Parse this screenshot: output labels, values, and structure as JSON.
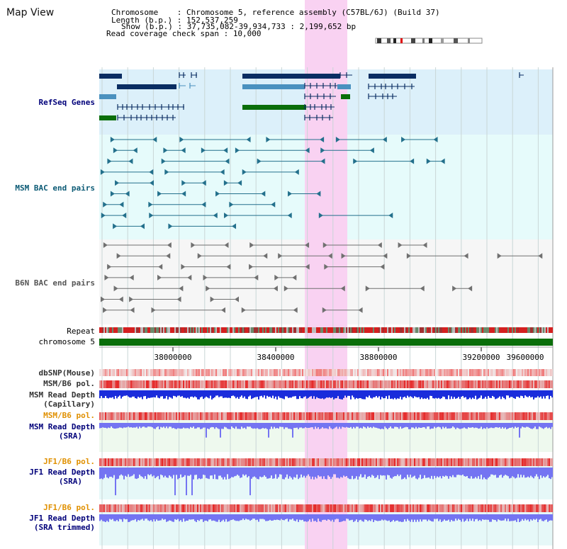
{
  "title": "Map View",
  "info": {
    "chromosome_key": "Chromosome    : ",
    "chromosome_val": "Chromosome 5, reference assembly (C57BL/6J) (Build 37)",
    "length_key": "Length (b.p.) : ",
    "length_val": "152,537,259",
    "show_key": "Show (b.p.) : ",
    "show_val": "37,735,082-39,934,733 : 2,199,652 bp",
    "span_key": "Read coverage check span : ",
    "span_val": "10,000"
  },
  "tracks": {
    "refseq": "RefSeq Genes",
    "msm_bac": "MSM BAC end pairs",
    "b6n_bac": "B6N BAC end pairs",
    "repeat": "Repeat",
    "chromosome": "chromosome 5",
    "dbsnp": "dbSNP(Mouse)",
    "msm_pol1": "MSM/B6 pol.",
    "msm_depth_cap_1": "MSM Read Depth",
    "msm_depth_cap_2": "(Capillary)",
    "msm_pol2": "MSM/B6 pol.",
    "msm_depth_sra_1": "MSM Read Depth",
    "msm_depth_sra_2": "(SRA)",
    "jf1_pol1": "JF1/B6 pol.",
    "jf1_depth_1": "JF1 Read Depth",
    "jf1_depth_2": "(SRA)",
    "jf1_pol2": "JF1/B6 pol.",
    "jf1_trim_1": "JF1 Read Depth",
    "jf1_trim_2": "(SRA trimmed)"
  },
  "axis": {
    "ticks": [
      "38000000",
      "38400000",
      "38800000",
      "39200000",
      "39600000"
    ],
    "tick_values": [
      38000000,
      38400000,
      38800000,
      39200000,
      39600000
    ]
  },
  "colors": {
    "refseq_bg": "#dcf0fa",
    "bac_bg": "#e6fbfb",
    "highlight": "#f9d2f2",
    "refseq_dark": "#0a2d62",
    "refseq_mid": "#4a91bf",
    "refseq_green": "#0a6e0a",
    "msm_bac": "#23708c",
    "b6n_bac": "#707070",
    "polymorphism": "#e23030",
    "depth_dark": "#1a2cdb",
    "depth_light": "#7474f2",
    "label_blue": "#00007a",
    "label_teal": "#0b5a75",
    "label_gray": "#555555",
    "label_orange": "#e09000"
  }
}
